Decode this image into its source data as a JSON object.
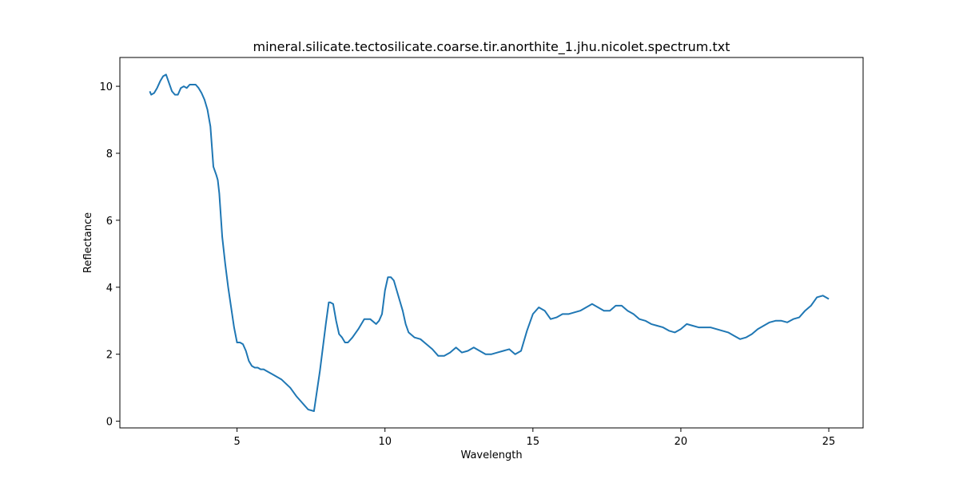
{
  "chart_data": {
    "type": "line",
    "title": "mineral.silicate.tectosilicate.coarse.tir.anorthite_1.jhu.nicolet.spectrum.txt",
    "xlabel": "Wavelength",
    "ylabel": "Reflectance",
    "xlim": [
      1.04,
      26.16
    ],
    "ylim": [
      -0.2,
      10.86
    ],
    "xticks": [
      5,
      10,
      15,
      20,
      25
    ],
    "yticks": [
      0,
      2,
      4,
      6,
      8,
      10
    ],
    "grid": false,
    "line_color": "#1f77b4",
    "series": [
      {
        "x": [
          2.05,
          2.1,
          2.2,
          2.3,
          2.4,
          2.5,
          2.6,
          2.7,
          2.8,
          2.9,
          3.0,
          3.1,
          3.2,
          3.3,
          3.4,
          3.5,
          3.6,
          3.7,
          3.8,
          3.9,
          4.0,
          4.1,
          4.2,
          4.3,
          4.35,
          4.4,
          4.5,
          4.6,
          4.7,
          4.8,
          4.9,
          5.0,
          5.1,
          5.2,
          5.3,
          5.4,
          5.5,
          5.6,
          5.7,
          5.8,
          5.9,
          6.0,
          6.2,
          6.5,
          6.8,
          7.0,
          7.2,
          7.4,
          7.6,
          7.8,
          8.0,
          8.1,
          8.15,
          8.25,
          8.35,
          8.45,
          8.55,
          8.65,
          8.75,
          8.9,
          9.1,
          9.3,
          9.5,
          9.7,
          9.8,
          9.9,
          10.0,
          10.1,
          10.2,
          10.3,
          10.4,
          10.5,
          10.6,
          10.7,
          10.8,
          11.0,
          11.2,
          11.4,
          11.6,
          11.8,
          12.0,
          12.2,
          12.4,
          12.6,
          12.8,
          13.0,
          13.2,
          13.4,
          13.6,
          13.8,
          14.0,
          14.2,
          14.4,
          14.6,
          14.8,
          15.0,
          15.2,
          15.4,
          15.6,
          15.8,
          16.0,
          16.2,
          16.4,
          16.6,
          16.8,
          17.0,
          17.2,
          17.4,
          17.6,
          17.8,
          18.0,
          18.2,
          18.4,
          18.6,
          18.8,
          19.0,
          19.2,
          19.4,
          19.6,
          19.8,
          20.0,
          20.2,
          20.4,
          20.6,
          20.8,
          21.0,
          21.2,
          21.4,
          21.6,
          21.8,
          22.0,
          22.2,
          22.4,
          22.6,
          22.8,
          23.0,
          23.2,
          23.4,
          23.6,
          23.8,
          24.0,
          24.2,
          24.4,
          24.6,
          24.8,
          25.0
        ],
        "y": [
          9.85,
          9.75,
          9.8,
          9.95,
          10.15,
          10.3,
          10.35,
          10.1,
          9.85,
          9.75,
          9.75,
          9.95,
          10.0,
          9.95,
          10.05,
          10.05,
          10.05,
          9.95,
          9.8,
          9.6,
          9.3,
          8.8,
          7.6,
          7.35,
          7.2,
          6.8,
          5.5,
          4.7,
          4.0,
          3.4,
          2.8,
          2.35,
          2.35,
          2.3,
          2.1,
          1.8,
          1.65,
          1.6,
          1.6,
          1.55,
          1.55,
          1.5,
          1.4,
          1.25,
          1.0,
          0.75,
          0.55,
          0.35,
          0.3,
          1.5,
          2.9,
          3.55,
          3.55,
          3.5,
          3.0,
          2.6,
          2.5,
          2.35,
          2.35,
          2.5,
          2.75,
          3.05,
          3.05,
          2.9,
          3.0,
          3.2,
          3.9,
          4.3,
          4.3,
          4.2,
          3.9,
          3.6,
          3.3,
          2.9,
          2.65,
          2.5,
          2.45,
          2.3,
          2.15,
          1.95,
          1.95,
          2.05,
          2.2,
          2.05,
          2.1,
          2.2,
          2.1,
          2.0,
          2.0,
          2.05,
          2.1,
          2.15,
          2.0,
          2.1,
          2.7,
          3.2,
          3.4,
          3.3,
          3.05,
          3.1,
          3.2,
          3.2,
          3.25,
          3.3,
          3.4,
          3.5,
          3.4,
          3.3,
          3.3,
          3.45,
          3.45,
          3.3,
          3.2,
          3.05,
          3.0,
          2.9,
          2.85,
          2.8,
          2.7,
          2.65,
          2.75,
          2.9,
          2.85,
          2.8,
          2.8,
          2.8,
          2.75,
          2.7,
          2.65,
          2.55,
          2.45,
          2.5,
          2.6,
          2.75,
          2.85,
          2.95,
          3.0,
          3.0,
          2.95,
          3.05,
          3.1,
          3.3,
          3.45,
          3.7,
          3.75,
          3.65
        ]
      }
    ]
  }
}
